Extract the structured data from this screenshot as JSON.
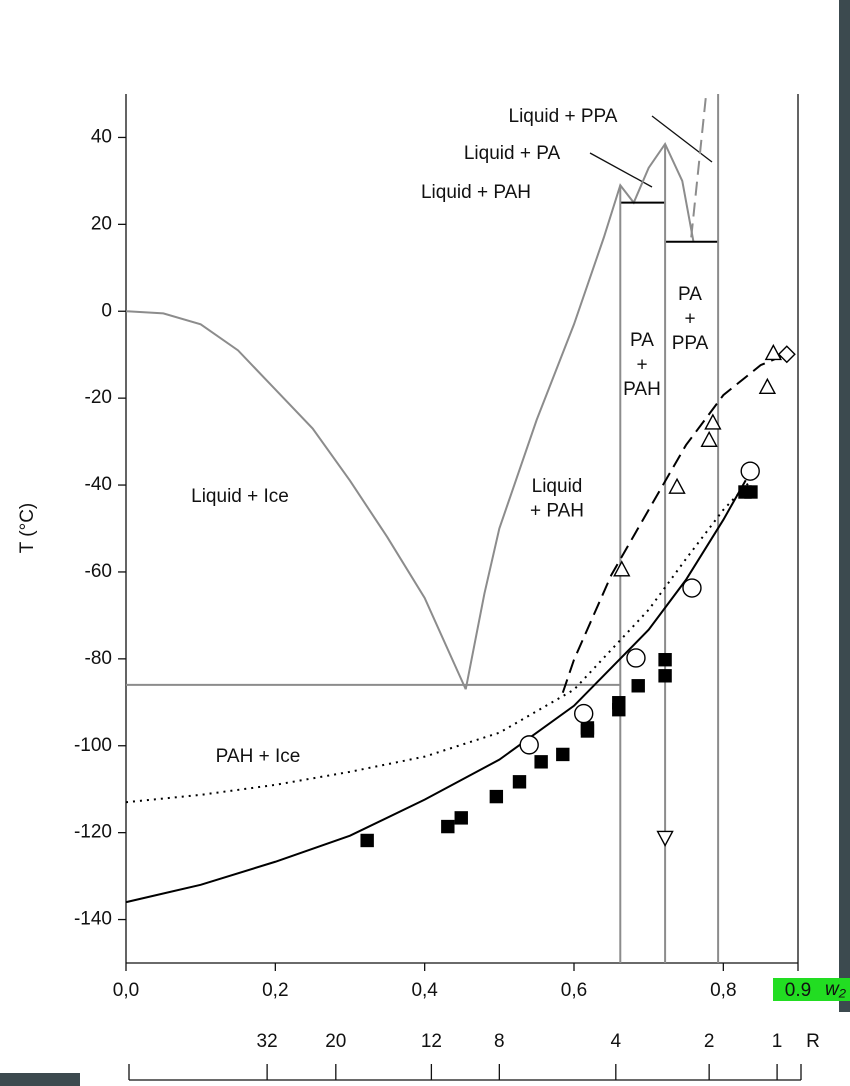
{
  "chart_data": {
    "type": "line",
    "xlabel": "w₂",
    "ylabel": "T (°C)",
    "xlim": [
      0,
      0.9
    ],
    "ylim": [
      -150,
      50
    ],
    "xticks": [
      {
        "value": 0,
        "label": "0,0"
      },
      {
        "value": 0.2,
        "label": "0,2"
      },
      {
        "value": 0.4,
        "label": "0,4"
      },
      {
        "value": 0.6,
        "label": "0,6"
      },
      {
        "value": 0.8,
        "label": "0,8"
      },
      {
        "value": 0.9,
        "label": "0.9"
      }
    ],
    "yticks": [
      -140,
      -120,
      -100,
      -80,
      -60,
      -40,
      -20,
      0,
      20,
      40
    ],
    "r_axis": {
      "label": "R",
      "ticks": [
        32,
        20,
        12,
        8,
        4,
        2,
        1
      ],
      "w2": [
        0.189,
        0.281,
        0.409,
        0.5,
        0.656,
        0.781,
        0.872
      ]
    },
    "annotations": [
      [
        "Liquid + PPA"
      ],
      [
        "Liquid + PA"
      ],
      [
        "Liquid + PAH"
      ],
      [
        "PA",
        "+",
        "PPA"
      ],
      [
        "PA",
        "+",
        "PAH"
      ],
      [
        "Liquid",
        "+ PAH"
      ],
      [
        "Liquid + Ice"
      ],
      [
        "PAH + Ice"
      ]
    ],
    "series": [
      {
        "color": "#8c8c8c",
        "style": "solid",
        "x": [
          0,
          0.05,
          0.1,
          0.15,
          0.2,
          0.25,
          0.3,
          0.35,
          0.4,
          0.455
        ],
        "values": [
          0,
          -0.5,
          -3,
          -9,
          -18,
          -27,
          -39,
          -52,
          -66,
          -87
        ]
      },
      {
        "color": "#8c8c8c",
        "style": "solid",
        "x": [
          0.455,
          0.48,
          0.5,
          0.55,
          0.6,
          0.64,
          0.662,
          0.68,
          0.7,
          0.722,
          0.745,
          0.76
        ],
        "values": [
          -87,
          -65,
          -50,
          -25,
          -3,
          17,
          29,
          25,
          33,
          38.5,
          30,
          16
        ]
      },
      {
        "color": "#8c8c8c",
        "style": "dashed",
        "x": [
          0.757,
          0.777
        ],
        "values": [
          17,
          50
        ]
      },
      {
        "color": "#8c8c8c",
        "style": "solid",
        "x": [
          0,
          0.662
        ],
        "values": [
          -86,
          -86
        ]
      },
      {
        "color": "#000000",
        "style": "solid",
        "x": [
          0.662,
          0.722
        ],
        "values": [
          25,
          25
        ]
      },
      {
        "color": "#000000",
        "style": "solid",
        "x": [
          0.722,
          0.793
        ],
        "values": [
          16,
          16
        ]
      },
      {
        "color": "#8c8c8c",
        "style": "solid",
        "x": [
          0.662,
          0.662
        ],
        "values": [
          29,
          -150
        ]
      },
      {
        "color": "#8c8c8c",
        "style": "solid",
        "x": [
          0.722,
          0.722
        ],
        "values": [
          38.5,
          -150
        ]
      },
      {
        "color": "#8c8c8c",
        "style": "solid",
        "x": [
          0.793,
          0.793
        ],
        "values": [
          50,
          -150
        ]
      },
      {
        "color": "#000000",
        "style": "solid",
        "x": [
          0,
          0.1,
          0.2,
          0.3,
          0.4,
          0.5,
          0.6,
          0.7,
          0.75,
          0.8,
          0.83
        ],
        "values": [
          -136,
          -132,
          -126.7,
          -120.7,
          -112.4,
          -103.2,
          -90.8,
          -73.3,
          -61.8,
          -48,
          -38.9
        ]
      },
      {
        "color": "#000000",
        "style": "dotted",
        "x": [
          0,
          0.1,
          0.2,
          0.3,
          0.4,
          0.5,
          0.6,
          0.7,
          0.75,
          0.8,
          0.84
        ],
        "values": [
          -113,
          -111.3,
          -109,
          -106,
          -102.5,
          -97,
          -87.1,
          -68.7,
          -57,
          -45.7,
          -38.4
        ]
      },
      {
        "color": "#000000",
        "style": "dashed",
        "x": [
          0.585,
          0.6,
          0.65,
          0.7,
          0.75,
          0.8,
          0.85,
          0.883
        ],
        "values": [
          -87.8,
          -80.2,
          -60.7,
          -45.7,
          -30.8,
          -19.3,
          -12.4,
          -10
        ]
      },
      {
        "color": "#000000",
        "style": "none",
        "marker": "square",
        "x": [
          0.323,
          0.431,
          0.449,
          0.496,
          0.527,
          0.556,
          0.585,
          0.618,
          0.618,
          0.66,
          0.66,
          0.686,
          0.722,
          0.722,
          0.829,
          0.837
        ],
        "values": [
          -121.8,
          -118.6,
          -116.6,
          -111.7,
          -108.3,
          -103.7,
          -102,
          -96.6,
          -95.9,
          -91.7,
          -90.1,
          -86.2,
          -83.9,
          -80.2,
          -41.6,
          -41.6
        ]
      },
      {
        "color": "#000000",
        "style": "none",
        "marker": "circle",
        "x": [
          0.54,
          0.613,
          0.683,
          0.758,
          0.836
        ],
        "values": [
          -99.8,
          -92.6,
          -79.8,
          -63.7,
          -36.8
        ]
      },
      {
        "color": "#000000",
        "style": "none",
        "marker": "triangle-up",
        "x": [
          0.664,
          0.738,
          0.781,
          0.786,
          0.859,
          0.867
        ],
        "values": [
          -59.5,
          -40.5,
          -29.7,
          -25.7,
          -17.5,
          -9.7
        ]
      },
      {
        "color": "#000000",
        "style": "none",
        "marker": "diamond",
        "x": [
          0.885
        ],
        "values": [
          -9.9
        ]
      },
      {
        "color": "#000000",
        "style": "none",
        "marker": "triangle-down",
        "x": [
          0.722
        ],
        "values": [
          -121.1
        ]
      }
    ]
  }
}
